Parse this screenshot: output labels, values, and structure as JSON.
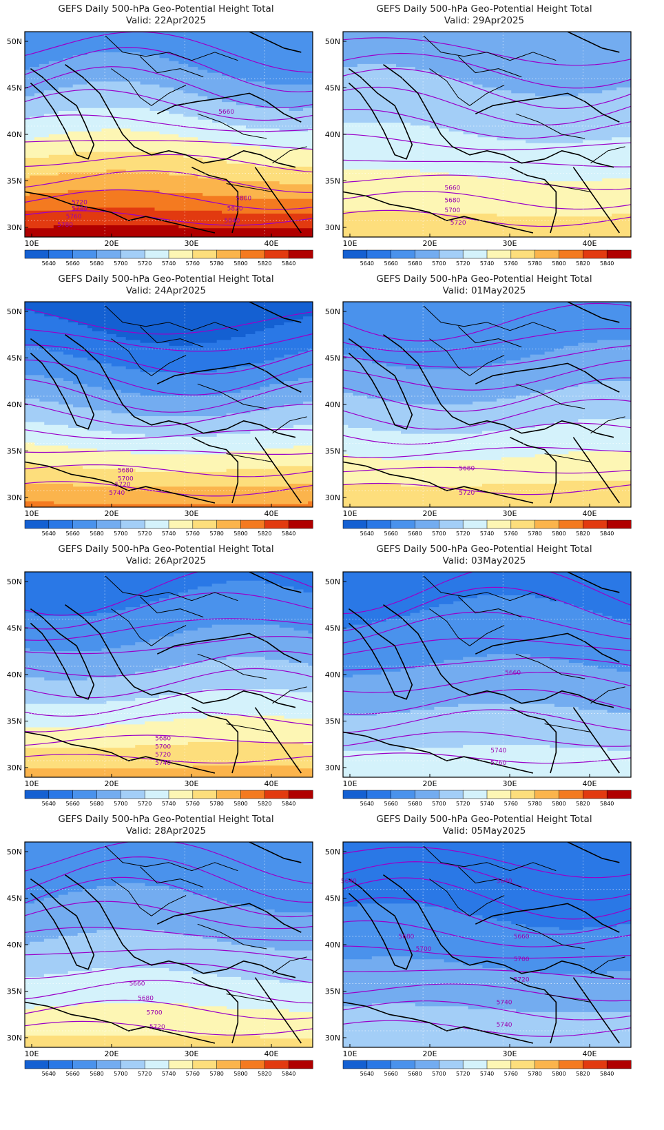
{
  "legend": {
    "levels": [
      "5640",
      "5660",
      "5680",
      "5700",
      "5720",
      "5740",
      "5760",
      "5780",
      "5800",
      "5820",
      "5840"
    ],
    "colors": [
      "#1460d2",
      "#2a78e6",
      "#4a92ec",
      "#73acf0",
      "#a3cef7",
      "#d4f2fb",
      "#fdf6b4",
      "#fdde7c",
      "#fbb44c",
      "#f47a20",
      "#e23a10",
      "#b00000"
    ]
  },
  "axes": {
    "lon_labels": [
      "10E",
      "20E",
      "30E",
      "40E"
    ],
    "lat_labels": [
      "50N",
      "45N",
      "40N",
      "35N",
      "30N"
    ]
  },
  "panels": [
    {
      "title": "GEFS Daily 500-hPa Geo-Potential Height Total",
      "valid": "Valid: 22Apr2025",
      "north": 0.3,
      "south": 2.1,
      "contour_labels": [
        [
          "5660",
          0.7,
          0.4
        ],
        [
          "5720",
          0.19,
          0.84
        ],
        [
          "5740",
          0.19,
          0.87
        ],
        [
          "5760",
          0.17,
          0.91
        ],
        [
          "5780",
          0.14,
          0.95
        ],
        [
          "5800",
          0.76,
          0.82
        ],
        [
          "5820",
          0.73,
          0.87
        ],
        [
          "5840",
          0.72,
          0.93
        ]
      ]
    },
    {
      "title": "GEFS Daily 500-hPa Geo-Potential Height Total",
      "valid": "Valid: 29Apr2025",
      "north": 0.55,
      "south": 1.35,
      "contour_labels": [
        [
          "5660",
          0.38,
          0.77
        ],
        [
          "5680",
          0.38,
          0.83
        ],
        [
          "5700",
          0.38,
          0.88
        ],
        [
          "5720",
          0.4,
          0.94
        ]
      ]
    },
    {
      "title": "GEFS Daily 500-hPa Geo-Potential Height Total",
      "valid": "Valid: 24Apr2025",
      "north": 0.0,
      "south": 1.65,
      "contour_labels": [
        [
          "5680",
          0.35,
          0.83
        ],
        [
          "5700",
          0.35,
          0.87
        ],
        [
          "5720",
          0.34,
          0.9
        ],
        [
          "5740",
          0.32,
          0.94
        ]
      ]
    },
    {
      "title": "GEFS Daily 500-hPa Geo-Potential Height Total",
      "valid": "Valid: 01May2025",
      "north": 0.3,
      "south": 1.4,
      "contour_labels": [
        [
          "5680",
          0.43,
          0.82
        ],
        [
          "5720",
          0.43,
          0.94
        ]
      ]
    },
    {
      "title": "GEFS Daily 500-hPa Geo-Potential Height Total",
      "valid": "Valid: 26Apr2025",
      "north": 0.2,
      "south": 1.5,
      "contour_labels": [
        [
          "5680",
          0.48,
          0.82
        ],
        [
          "5700",
          0.48,
          0.86
        ],
        [
          "5720",
          0.48,
          0.9
        ],
        [
          "5740",
          0.48,
          0.94
        ]
      ]
    },
    {
      "title": "GEFS Daily 500-hPa Geo-Potential Height Total",
      "valid": "Valid: 03May2025",
      "north": 0.2,
      "south": 1.0,
      "contour_labels": [
        [
          "5660",
          0.59,
          0.5
        ],
        [
          "5740",
          0.54,
          0.88
        ],
        [
          "5760",
          0.54,
          0.94
        ]
      ]
    },
    {
      "title": "GEFS Daily 500-hPa Geo-Potential Height Total",
      "valid": "Valid: 28Apr2025",
      "north": 0.3,
      "south": 1.3,
      "contour_labels": [
        [
          "5660",
          0.39,
          0.7
        ],
        [
          "5680",
          0.42,
          0.77
        ],
        [
          "5700",
          0.45,
          0.84
        ],
        [
          "5720",
          0.46,
          0.91
        ]
      ]
    },
    {
      "title": "GEFS Daily 500-hPa Geo-Potential Height Total",
      "valid": "Valid: 05May2025",
      "north": 0.1,
      "south": 0.85,
      "contour_labels": [
        [
          "5640",
          0.02,
          0.2
        ],
        [
          "5640",
          0.56,
          0.2
        ],
        [
          "5680",
          0.22,
          0.47
        ],
        [
          "5660",
          0.62,
          0.47
        ],
        [
          "5700",
          0.28,
          0.53
        ],
        [
          "5700",
          0.62,
          0.58
        ],
        [
          "5720",
          0.62,
          0.68
        ],
        [
          "5740",
          0.56,
          0.79
        ],
        [
          "5740",
          0.56,
          0.9
        ]
      ]
    }
  ]
}
